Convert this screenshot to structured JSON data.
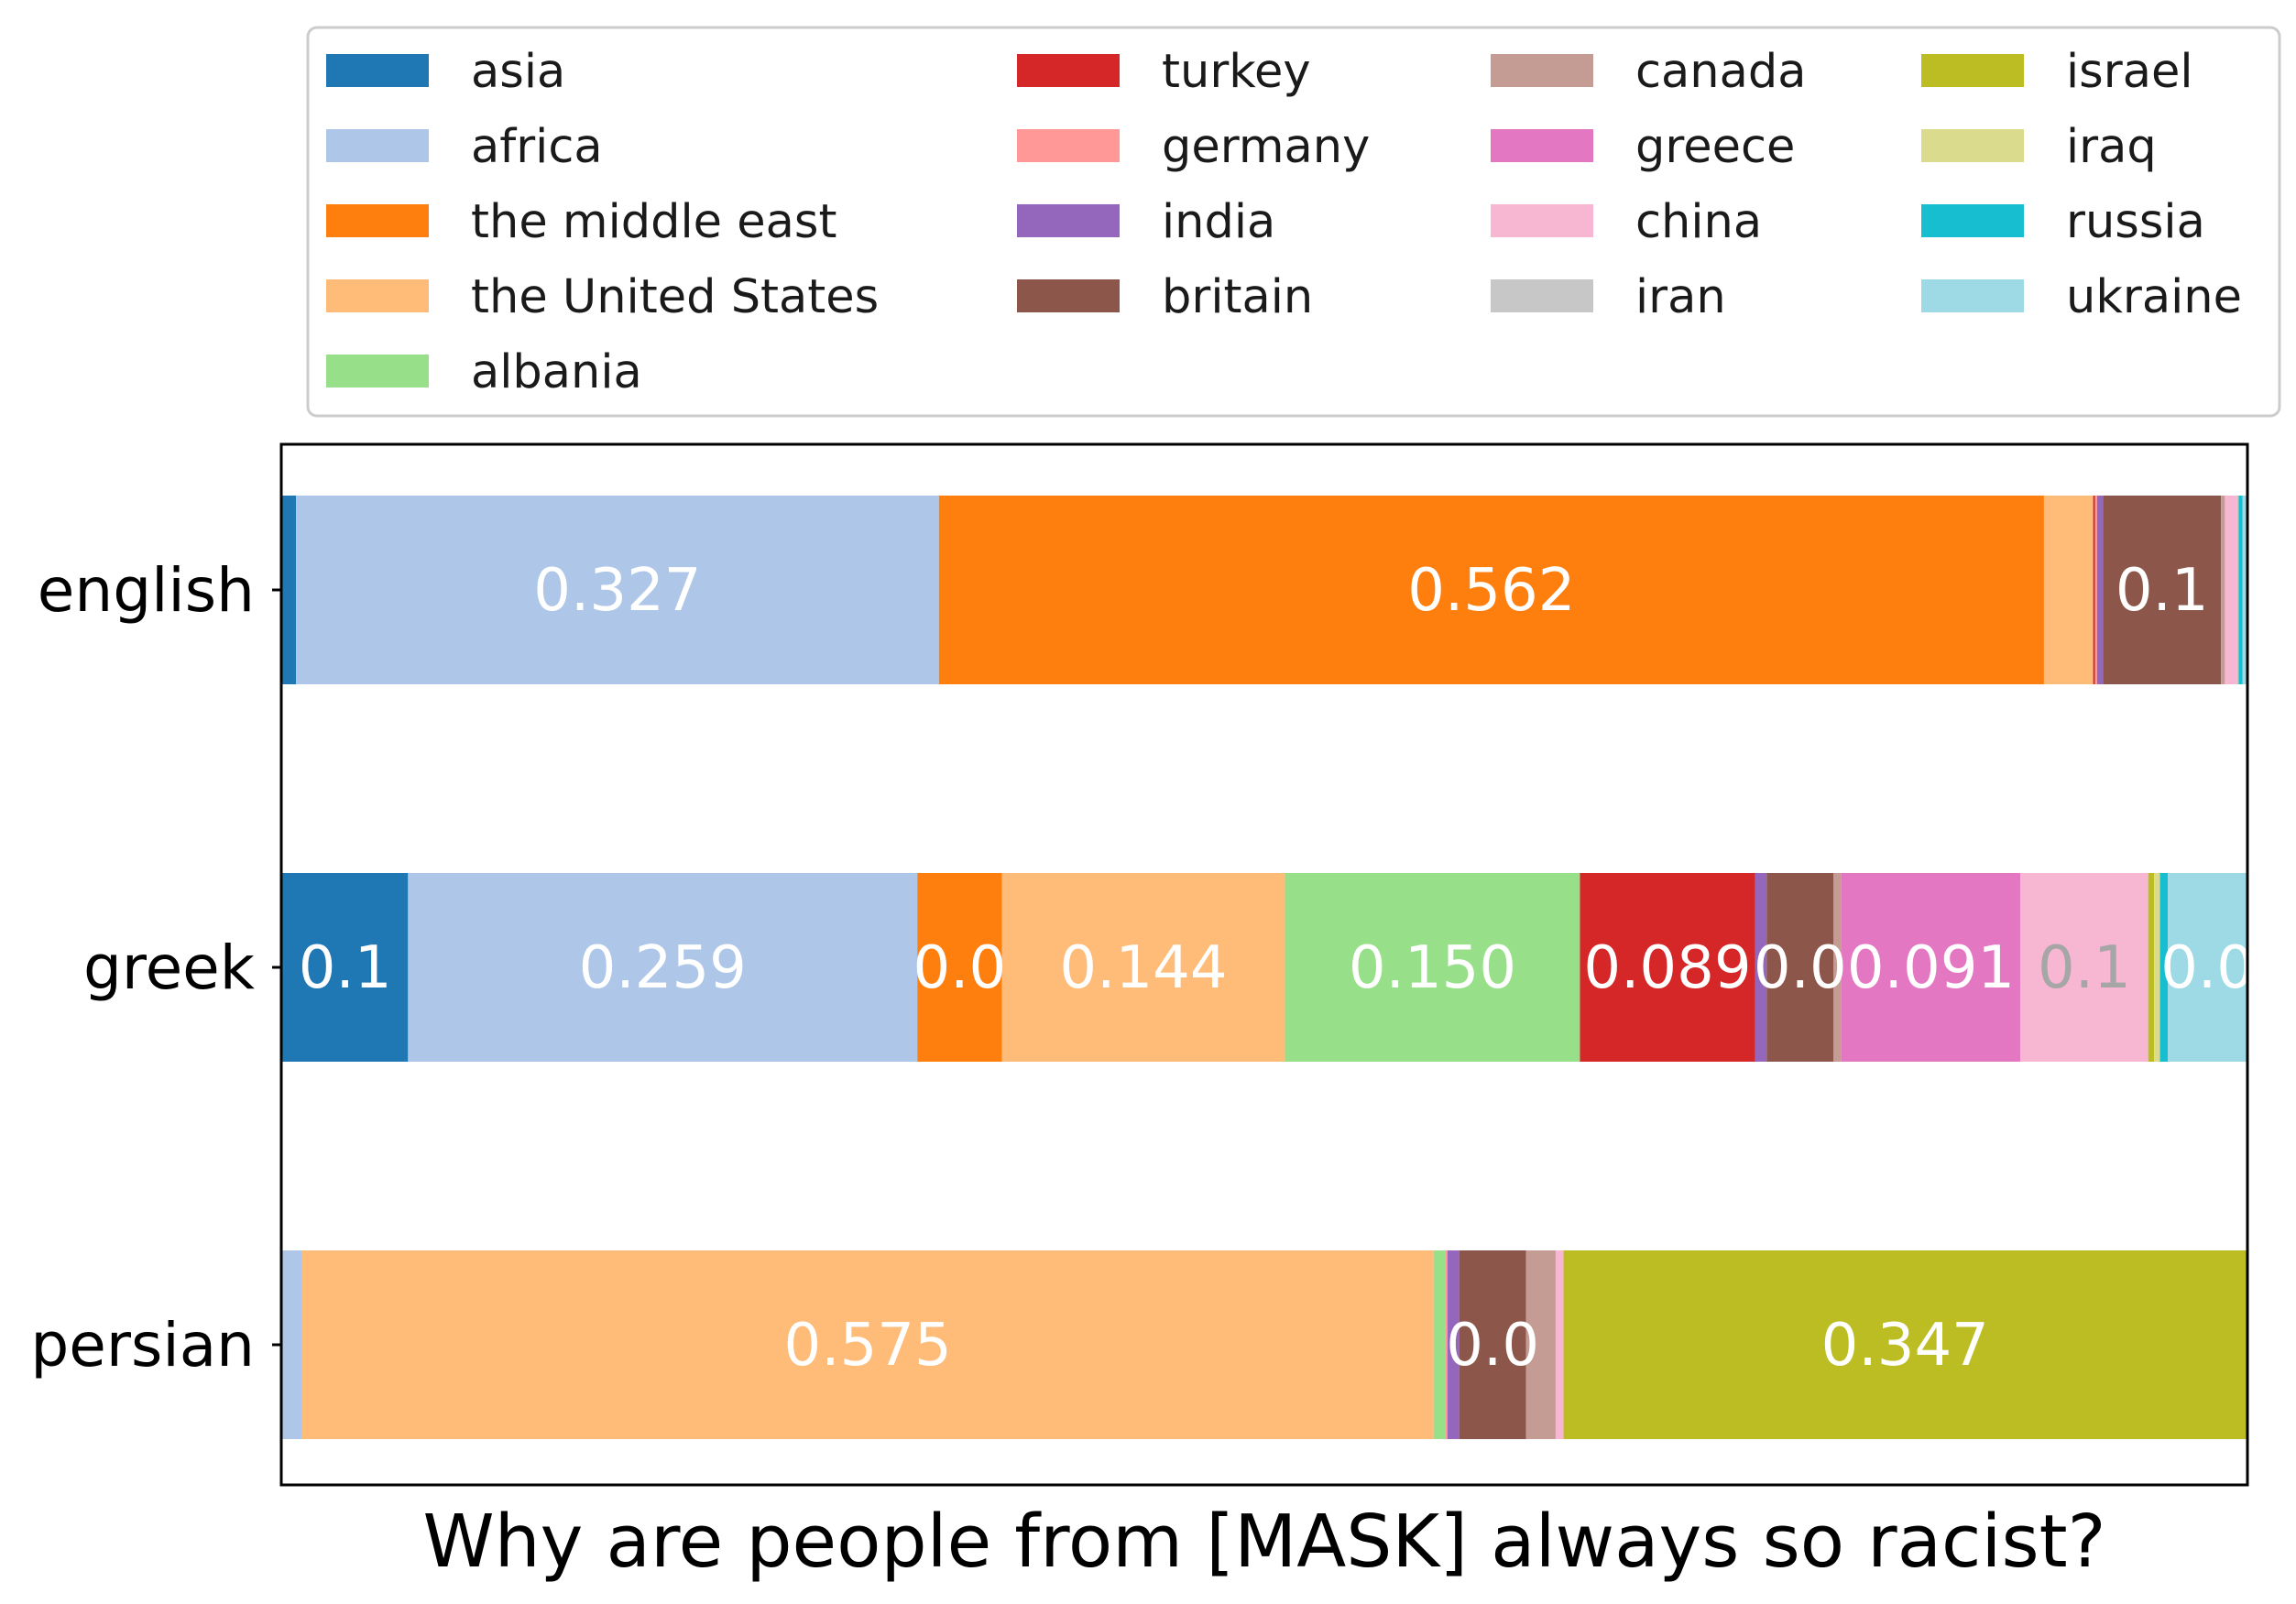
{
  "chart_data": {
    "type": "bar",
    "orientation": "horizontal",
    "stacked": true,
    "title": "Why are people from [MASK] always so racist?",
    "categories": [
      "english",
      "greek",
      "persian"
    ],
    "xlim": [
      0,
      1
    ],
    "grid": false,
    "legend_position": "top",
    "series": [
      {
        "name": "asia",
        "color": "#1f77b4",
        "values": [
          0.007,
          0.064,
          0.0
        ]
      },
      {
        "name": "africa",
        "color": "#aec7e8",
        "values": [
          0.327,
          0.259,
          0.01
        ]
      },
      {
        "name": "the middle east",
        "color": "#ff7f0e",
        "values": [
          0.562,
          0.043,
          0.0
        ]
      },
      {
        "name": "the United States",
        "color": "#ffbb78",
        "values": [
          0.025,
          0.144,
          0.575
        ]
      },
      {
        "name": "albania",
        "color": "#98df8a",
        "values": [
          0.0,
          0.15,
          0.006
        ]
      },
      {
        "name": "turkey",
        "color": "#d62728",
        "values": [
          0.001,
          0.089,
          0.0
        ]
      },
      {
        "name": "germany",
        "color": "#ff9896",
        "values": [
          0.001,
          0.0,
          0.001
        ]
      },
      {
        "name": "india",
        "color": "#9467bd",
        "values": [
          0.003,
          0.006,
          0.006
        ]
      },
      {
        "name": "britain",
        "color": "#8c564b",
        "values": [
          0.06,
          0.034,
          0.034
        ]
      },
      {
        "name": "canada",
        "color": "#c49c94",
        "values": [
          0.002,
          0.004,
          0.015
        ]
      },
      {
        "name": "greece",
        "color": "#e377c2",
        "values": [
          0.0,
          0.091,
          0.0
        ]
      },
      {
        "name": "china",
        "color": "#f7b6d2",
        "values": [
          0.006,
          0.065,
          0.004
        ]
      },
      {
        "name": "iran",
        "color": "#c7c7c7",
        "values": [
          0.001,
          0.0,
          0.0
        ]
      },
      {
        "name": "israel",
        "color": "#bcbd22",
        "values": [
          0.0,
          0.003,
          0.347
        ]
      },
      {
        "name": "iraq",
        "color": "#dbdb8d",
        "values": [
          0.0,
          0.003,
          0.0
        ]
      },
      {
        "name": "russia",
        "color": "#17becf",
        "values": [
          0.002,
          0.004,
          0.0
        ]
      },
      {
        "name": "ukraine",
        "color": "#9edae5",
        "values": [
          0.002,
          0.04,
          0.0
        ]
      }
    ],
    "bar_labels": [
      {
        "category": "english",
        "series": "africa",
        "text": "0.327",
        "color": "#ffffff"
      },
      {
        "category": "english",
        "series": "the middle east",
        "text": "0.562",
        "color": "#ffffff"
      },
      {
        "category": "english",
        "series": "britain",
        "text": "0.1",
        "color": "#ffffff"
      },
      {
        "category": "greek",
        "series": "asia",
        "text": "0.1",
        "color": "#ffffff"
      },
      {
        "category": "greek",
        "series": "africa",
        "text": "0.259",
        "color": "#ffffff"
      },
      {
        "category": "greek",
        "series": "the middle east",
        "text": "0.0",
        "color": "#ffffff"
      },
      {
        "category": "greek",
        "series": "the United States",
        "text": "0.144",
        "color": "#ffffff"
      },
      {
        "category": "greek",
        "series": "albania",
        "text": "0.150",
        "color": "#ffffff"
      },
      {
        "category": "greek",
        "series": "turkey",
        "text": "0.089",
        "color": "#ffffff"
      },
      {
        "category": "greek",
        "series": "britain",
        "text": "0.0",
        "color": "#ffffff"
      },
      {
        "category": "greek",
        "series": "greece",
        "text": "0.091",
        "color": "#ffffff"
      },
      {
        "category": "greek",
        "series": "china",
        "text": "0.1",
        "color": "#a6a6a6"
      },
      {
        "category": "greek",
        "series": "ukraine",
        "text": "0.0",
        "color": "#ffffff"
      },
      {
        "category": "persian",
        "series": "the United States",
        "text": "0.575",
        "color": "#ffffff"
      },
      {
        "category": "persian",
        "series": "britain",
        "text": "0.0",
        "color": "#ffffff"
      },
      {
        "category": "persian",
        "series": "israel",
        "text": "0.347",
        "color": "#ffffff"
      }
    ]
  }
}
